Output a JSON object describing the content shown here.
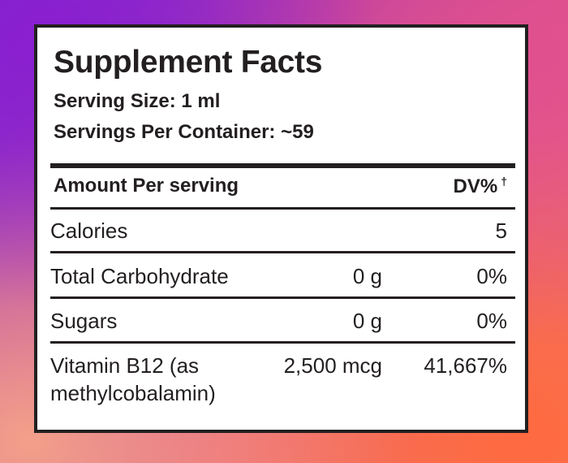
{
  "facts": {
    "title": "Supplement Facts",
    "serving_size": "Serving Size: 1 ml",
    "servings_per_container": "Servings Per Container: ~59",
    "header": {
      "amount_label": "Amount Per serving",
      "dv_label": "DV%",
      "dv_symbol": "†"
    },
    "rows": [
      {
        "name": "Calories",
        "amount": "",
        "dv": "5"
      },
      {
        "name": "Total Carbohydrate",
        "amount": "0 g",
        "dv": "0%"
      },
      {
        "name": "Sugars",
        "amount": "0 g",
        "dv": "0%"
      },
      {
        "name_line1": "Vitamin B12 (as",
        "name_line2": "methylcobalamin)",
        "amount": "2,500 mcg",
        "dv": "41,667%"
      }
    ]
  }
}
